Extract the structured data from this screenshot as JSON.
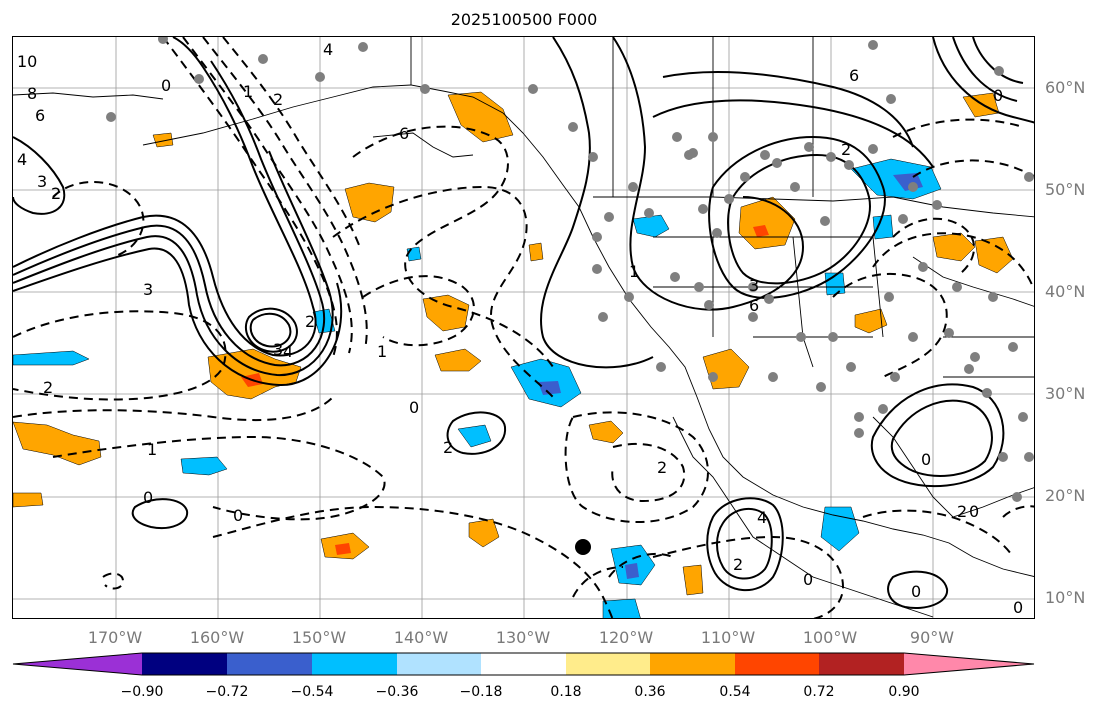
{
  "title": "2025100500 F000",
  "lat_labels": [
    "60°N",
    "50°N",
    "40°N",
    "30°N",
    "20°N",
    "10°N"
  ],
  "lon_labels": [
    "170°W",
    "160°W",
    "150°W",
    "140°W",
    "130°W",
    "120°W",
    "110°W",
    "100°W",
    "90°W"
  ],
  "colorbar": {
    "ticks": [
      "−0.90",
      "−0.72",
      "−0.54",
      "−0.36",
      "−0.18",
      "0.18",
      "0.36",
      "0.54",
      "0.72",
      "0.90"
    ],
    "colors": [
      "#9b30d6",
      "#000080",
      "#3a5fcd",
      "#00bfff",
      "#b0e2ff",
      "#ffffff",
      "#ffec8b",
      "#ffa500",
      "#ff4500",
      "#b22222",
      "#ff88aa"
    ]
  },
  "contour_labels": [
    "10",
    "8",
    "6",
    "4",
    "3",
    "2",
    "2",
    "4",
    "6",
    "6",
    "0",
    "1",
    "3",
    "2",
    "1",
    "0",
    "0",
    "0",
    "2",
    "2",
    "1",
    "4",
    "3",
    "6",
    "2",
    "4",
    "0",
    "2",
    "2",
    "0",
    "1",
    "0",
    "0",
    "0",
    "3",
    "2",
    "0"
  ],
  "marker": "black-dot"
}
